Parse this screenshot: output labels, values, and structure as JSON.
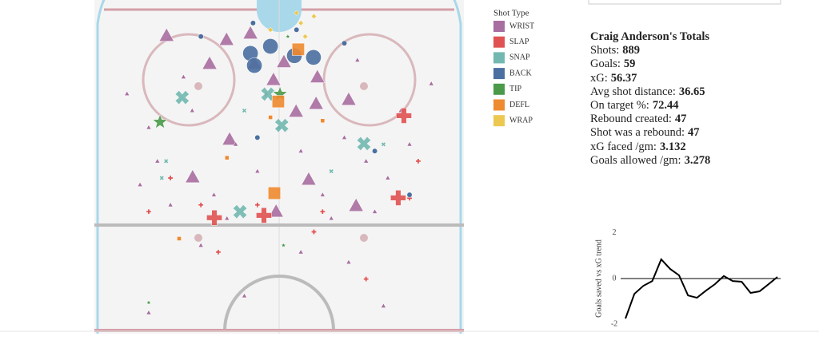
{
  "chart_data": [
    {
      "type": "scatter",
      "legend_title": "Shot Type",
      "series": [
        {
          "name": "WRIST",
          "color": "#a86ea0",
          "marker": "triangle",
          "x": [
            -25.9,
            -12.1,
            -6.6,
            -16.0,
            8.8,
            16.0,
            -11.4,
            -19.9,
            6.8,
            17.7,
            -0.7,
            8.5,
            -1.3,
            -5.7,
            1.1,
            3.9,
            -30,
            -28,
            -20,
            -15,
            -10,
            -5,
            0,
            5,
            10,
            15,
            20,
            25,
            30,
            28,
            -32,
            -25,
            -12,
            12,
            22,
            -35,
            35,
            -18,
            16,
            -8,
            24,
            -30,
            5,
            -22,
            18,
            -3
          ],
          "y": [
            7.8,
            9.0,
            7.1,
            16.1,
            20.1,
            26.8,
            38.6,
            49.8,
            50.5,
            58.3,
            60.0,
            28.0,
            20.9,
            16.1,
            15.6,
            30.3,
            35,
            45,
            30,
            55,
            40,
            48,
            35,
            42,
            55,
            38,
            45,
            50,
            40,
            30,
            52,
            58,
            62,
            62,
            60,
            25,
            22,
            70,
            75,
            85,
            88,
            90,
            72,
            20,
            15,
            25
          ],
          "size": [
            3,
            3,
            3,
            3,
            3,
            3,
            3,
            3,
            3,
            3,
            3,
            3,
            3,
            3,
            3,
            3,
            1,
            1,
            1,
            1,
            1,
            1,
            1,
            1,
            1,
            1,
            1,
            1,
            1,
            1,
            1,
            1,
            1,
            1,
            1,
            1,
            1,
            1,
            1,
            1,
            1,
            1,
            1,
            1,
            1,
            1
          ]
        },
        {
          "name": "SLAP",
          "color": "#e05252",
          "marker": "plus",
          "x": [
            28.7,
            27.4,
            -14.9,
            -3.5,
            -25,
            -18,
            10,
            30,
            -14,
            20,
            -5,
            32,
            -30,
            8
          ],
          "y": [
            31.5,
            55.9,
            61.8,
            61.1,
            50,
            58,
            60,
            56,
            72,
            80,
            58,
            45,
            60,
            66
          ],
          "size": [
            3,
            3,
            3,
            3,
            1,
            1,
            1,
            1,
            1,
            1,
            1,
            1,
            1,
            1
          ]
        },
        {
          "name": "SNAP",
          "color": "#72b8b0",
          "marker": "cross",
          "x": [
            -22.3,
            -9.0,
            0.6,
            19.5,
            -2.6,
            -26,
            -27,
            24,
            12,
            -8
          ],
          "y": [
            26.1,
            60.0,
            34.4,
            39.8,
            25.1,
            45,
            50,
            40,
            48,
            30
          ],
          "size": [
            3,
            3,
            3,
            3,
            3,
            1,
            1,
            1,
            1,
            1
          ]
        },
        {
          "name": "BACK",
          "color": "#4a6fa0",
          "marker": "circle",
          "x": [
            -2.0,
            -6.6,
            7.9,
            -5.7,
            3.5,
            -18,
            15,
            -5,
            22,
            -6,
            4,
            30
          ],
          "y": [
            10.9,
            13.0,
            14.2,
            16.6,
            13.7,
            8,
            10,
            38,
            42,
            4,
            6,
            55
          ],
          "size": [
            3,
            3,
            3,
            3,
            3,
            1,
            1,
            1,
            1,
            1,
            1,
            1
          ]
        },
        {
          "name": "TIP",
          "color": "#4a9a4a",
          "marker": "star",
          "x": [
            -27.4,
            0.2,
            1,
            -30,
            2
          ],
          "y": [
            33.4,
            25.1,
            70,
            87,
            8
          ],
          "size": [
            3,
            3,
            1,
            1,
            1
          ]
        },
        {
          "name": "DEFL",
          "color": "#ee8a30",
          "marker": "square",
          "x": [
            -1.1,
            -0.2,
            4.4,
            -12,
            -2,
            10,
            -23
          ],
          "y": [
            54.5,
            27.3,
            11.8,
            44,
            32,
            33,
            68
          ],
          "size": [
            3,
            3,
            3,
            1,
            1,
            1,
            1
          ]
        },
        {
          "name": "WRAP",
          "color": "#ecc850",
          "marker": "diamond",
          "x": [
            5,
            6,
            -2,
            8,
            4
          ],
          "y": [
            4,
            8,
            6,
            2,
            1
          ],
          "size": [
            1,
            1,
            1,
            1,
            1
          ]
        }
      ]
    },
    {
      "type": "line",
      "y_label": "Goals saved vs xG trend",
      "color": "#000000",
      "values": [
        -1.75,
        -0.67,
        -0.32,
        -0.11,
        0.84,
        0.42,
        0.14,
        -0.74,
        -0.84,
        -0.53,
        -0.25,
        0.11,
        -0.11,
        -0.14,
        -0.63,
        -0.56,
        -0.25,
        0.07
      ],
      "ylim": [
        -2.2,
        2.2
      ],
      "yticks": [
        2,
        0,
        -2
      ]
    }
  ],
  "totals": {
    "title": "Craig Anderson's Totals",
    "rows": [
      {
        "label": "Shots:",
        "value": 889
      },
      {
        "label": "Goals:",
        "value": 59
      },
      {
        "label": "xG:",
        "value": 56.37
      },
      {
        "label": "Avg shot distance:",
        "value": 36.65
      },
      {
        "label": "On target %:",
        "value": 72.44
      },
      {
        "label": "Rebound created:",
        "value": 47
      },
      {
        "label": "Shot was a rebound:",
        "value": 47
      },
      {
        "label": "xG faced /gm:",
        "value": 3.132
      },
      {
        "label": "Goals allowed /gm:",
        "value": 3.278
      }
    ]
  }
}
